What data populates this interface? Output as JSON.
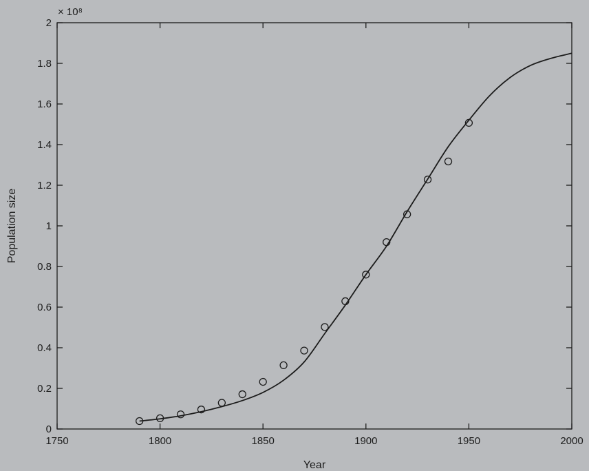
{
  "chart_data": {
    "type": "scatter",
    "xlabel": "Year",
    "ylabel": "Population size",
    "y_multiplier_label": "× 10⁸",
    "xlim": [
      1750,
      2000
    ],
    "ylim": [
      0,
      2
    ],
    "x_ticks": [
      1750,
      1800,
      1850,
      1900,
      1950,
      2000
    ],
    "y_ticks": [
      0,
      0.2,
      0.4,
      0.6,
      0.8,
      1,
      1.2,
      1.4,
      1.6,
      1.8,
      2
    ],
    "grid": false,
    "series": [
      {
        "marker": "open-circle",
        "x": [
          1790,
          1800,
          1810,
          1820,
          1830,
          1840,
          1850,
          1860,
          1870,
          1880,
          1890,
          1900,
          1910,
          1920,
          1930,
          1940,
          1950
        ],
        "y": [
          0.039,
          0.053,
          0.072,
          0.096,
          0.129,
          0.171,
          0.232,
          0.314,
          0.386,
          0.502,
          0.629,
          0.76,
          0.92,
          1.057,
          1.228,
          1.317,
          1.507
        ]
      },
      {
        "marker": "none",
        "style": "solid line (logistic fit)",
        "x": [
          1790,
          1800,
          1810,
          1820,
          1830,
          1840,
          1850,
          1860,
          1870,
          1880,
          1890,
          1900,
          1910,
          1920,
          1930,
          1940,
          1950,
          1960,
          1970,
          1980,
          1990,
          2000
        ],
        "y": [
          0.039,
          0.05,
          0.065,
          0.085,
          0.11,
          0.14,
          0.18,
          0.24,
          0.33,
          0.47,
          0.61,
          0.76,
          0.9,
          1.07,
          1.23,
          1.39,
          1.52,
          1.64,
          1.73,
          1.79,
          1.825,
          1.85
        ]
      }
    ]
  },
  "colors": {
    "background": "#b9bbbe",
    "ink": "#1c1c1c"
  }
}
